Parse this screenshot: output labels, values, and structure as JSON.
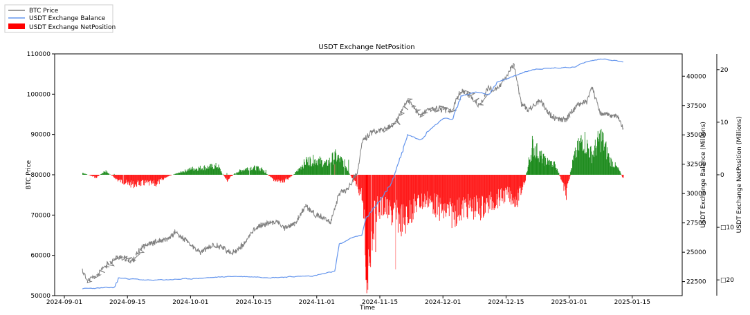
{
  "chart_data": {
    "type": "line",
    "title": "USDT Exchange NetPosition",
    "xlabel": "Time",
    "ylabel_left": "BTC Price",
    "ylabel_right": "USDT Exchange Balance (Millions)",
    "ylabel_right2": "USDT Exchange NetPosition (Millions)",
    "x_ticks": [
      "2024-09-01",
      "2024-09-15",
      "2024-10-01",
      "2024-10-15",
      "2024-11-01",
      "2024-11-15",
      "2024-12-01",
      "2024-12-15",
      "2025-01-01",
      "2025-01-15"
    ],
    "y_left_ticks": [
      "50000",
      "60000",
      "70000",
      "80000",
      "90000",
      "100000",
      "110000"
    ],
    "y_left_range": [
      50000,
      110000
    ],
    "y_right_ticks": [
      "22500",
      "25000",
      "27500",
      "30000",
      "32500",
      "35000",
      "37500",
      "40000"
    ],
    "y_right_range": [
      21300,
      41900
    ],
    "y_right2_ticks": [
      "□20",
      "□10",
      "0",
      "10",
      "20"
    ],
    "y_right2_range": [
      -23,
      23
    ],
    "legend": [
      {
        "name": "BTC Price",
        "color": "#7f7f7f",
        "kind": "line"
      },
      {
        "name": "USDT Exchange Balance",
        "color": "#6495ed",
        "kind": "line"
      },
      {
        "name": "USDT Exchange NetPosition",
        "color": "#ff0000",
        "kind": "bar"
      }
    ],
    "legend_position": "top-left",
    "x_start": "2024-09-05",
    "x_end": "2025-01-13",
    "btc_price": [
      [
        "2024-09-05",
        56300
      ],
      [
        "2024-09-06",
        53800
      ],
      [
        "2024-09-08",
        54800
      ],
      [
        "2024-09-10",
        57200
      ],
      [
        "2024-09-13",
        59800
      ],
      [
        "2024-09-16",
        58500
      ],
      [
        "2024-09-19",
        62500
      ],
      [
        "2024-09-22",
        63300
      ],
      [
        "2024-09-25",
        63800
      ],
      [
        "2024-09-27",
        65800
      ],
      [
        "2024-09-30",
        63500
      ],
      [
        "2024-10-03",
        60700
      ],
      [
        "2024-10-06",
        62500
      ],
      [
        "2024-10-08",
        62200
      ],
      [
        "2024-10-10",
        60300
      ],
      [
        "2024-10-13",
        62800
      ],
      [
        "2024-10-15",
        66500
      ],
      [
        "2024-10-17",
        67500
      ],
      [
        "2024-10-21",
        68500
      ],
      [
        "2024-10-23",
        66800
      ],
      [
        "2024-10-26",
        67800
      ],
      [
        "2024-10-29",
        72300
      ],
      [
        "2024-10-31",
        70500
      ],
      [
        "2024-11-02",
        69500
      ],
      [
        "2024-11-04",
        68000
      ],
      [
        "2024-11-06",
        75500
      ],
      [
        "2024-11-08",
        76600
      ],
      [
        "2024-11-10",
        80500
      ],
      [
        "2024-11-11",
        88000
      ],
      [
        "2024-11-13",
        90500
      ],
      [
        "2024-11-15",
        91000
      ],
      [
        "2024-11-17",
        91500
      ],
      [
        "2024-11-19",
        93000
      ],
      [
        "2024-11-22",
        98800
      ],
      [
        "2024-11-25",
        94500
      ],
      [
        "2024-11-27",
        96000
      ],
      [
        "2024-11-30",
        96500
      ],
      [
        "2024-12-03",
        95800
      ],
      [
        "2024-12-05",
        101000
      ],
      [
        "2024-12-07",
        99800
      ],
      [
        "2024-12-09",
        97000
      ],
      [
        "2024-12-11",
        101500
      ],
      [
        "2024-12-13",
        101000
      ],
      [
        "2024-12-16",
        106000
      ],
      [
        "2024-12-17",
        107500
      ],
      [
        "2024-12-19",
        97500
      ],
      [
        "2024-12-21",
        96000
      ],
      [
        "2024-12-24",
        98500
      ],
      [
        "2024-12-27",
        94500
      ],
      [
        "2024-12-29",
        93800
      ],
      [
        "2024-12-31",
        93500
      ],
      [
        "2025-01-03",
        97500
      ],
      [
        "2025-01-05",
        98300
      ],
      [
        "2025-01-06",
        102000
      ],
      [
        "2025-01-08",
        95000
      ],
      [
        "2025-01-10",
        94800
      ],
      [
        "2025-01-12",
        94500
      ],
      [
        "2025-01-13",
        91000
      ]
    ],
    "usdt_balance": [
      [
        "2024-09-05",
        21900
      ],
      [
        "2024-09-12",
        22000
      ],
      [
        "2024-09-13",
        22800
      ],
      [
        "2024-09-20",
        22600
      ],
      [
        "2024-10-01",
        22750
      ],
      [
        "2024-10-10",
        22950
      ],
      [
        "2024-10-20",
        22850
      ],
      [
        "2024-10-31",
        23000
      ],
      [
        "2024-11-05",
        23400
      ],
      [
        "2024-11-06",
        25700
      ],
      [
        "2024-11-08",
        26200
      ],
      [
        "2024-11-11",
        26500
      ],
      [
        "2024-11-12",
        28000
      ],
      [
        "2024-11-13",
        28500
      ],
      [
        "2024-11-15",
        29500
      ],
      [
        "2024-11-18",
        31000
      ],
      [
        "2024-11-20",
        33000
      ],
      [
        "2024-11-22",
        35000
      ],
      [
        "2024-11-25",
        34500
      ],
      [
        "2024-11-28",
        35700
      ],
      [
        "2024-12-01",
        36500
      ],
      [
        "2024-12-03",
        36300
      ],
      [
        "2024-12-05",
        38300
      ],
      [
        "2024-12-08",
        38700
      ],
      [
        "2024-12-11",
        38400
      ],
      [
        "2024-12-13",
        39500
      ],
      [
        "2024-12-15",
        39800
      ],
      [
        "2024-12-18",
        40200
      ],
      [
        "2024-12-22",
        40600
      ],
      [
        "2024-12-28",
        40700
      ],
      [
        "2025-01-02",
        40800
      ],
      [
        "2025-01-04",
        41200
      ],
      [
        "2025-01-08",
        41500
      ],
      [
        "2025-01-13",
        41200
      ]
    ],
    "net_position": [
      [
        "2024-09-05",
        0.4
      ],
      [
        "2024-09-08",
        -0.6
      ],
      [
        "2024-09-10",
        0.8
      ],
      [
        "2024-09-13",
        -1.2
      ],
      [
        "2024-09-16",
        -2.0
      ],
      [
        "2024-09-19",
        -1.7
      ],
      [
        "2024-09-22",
        -1.9
      ],
      [
        "2024-09-25",
        -0.3
      ],
      [
        "2024-09-28",
        0.4
      ],
      [
        "2024-10-01",
        1.2
      ],
      [
        "2024-10-04",
        1.5
      ],
      [
        "2024-10-07",
        1.8
      ],
      [
        "2024-10-09",
        -1.2
      ],
      [
        "2024-10-11",
        0.5
      ],
      [
        "2024-10-14",
        1.5
      ],
      [
        "2024-10-17",
        1.2
      ],
      [
        "2024-10-20",
        -1.0
      ],
      [
        "2024-10-23",
        -1.4
      ],
      [
        "2024-10-26",
        0.3
      ],
      [
        "2024-10-29",
        2.8
      ],
      [
        "2024-11-01",
        3.0
      ],
      [
        "2024-11-03",
        2.2
      ],
      [
        "2024-11-05",
        3.8
      ],
      [
        "2024-11-07",
        2.5
      ],
      [
        "2024-11-09",
        -1.2
      ],
      [
        "2024-11-11",
        -4.0
      ],
      [
        "2024-11-12",
        -20.0
      ],
      [
        "2024-11-14",
        -7.0
      ],
      [
        "2024-11-16",
        -6.5
      ],
      [
        "2024-11-18",
        -8.0
      ],
      [
        "2024-11-21",
        -9.5
      ],
      [
        "2024-11-24",
        -6.0
      ],
      [
        "2024-11-27",
        -5.0
      ],
      [
        "2024-11-30",
        -7.0
      ],
      [
        "2024-12-03",
        -8.0
      ],
      [
        "2024-12-06",
        -6.5
      ],
      [
        "2024-12-09",
        -7.0
      ],
      [
        "2024-12-12",
        -5.5
      ],
      [
        "2024-12-15",
        -4.0
      ],
      [
        "2024-12-18",
        -5.0
      ],
      [
        "2024-12-20",
        -0.8
      ],
      [
        "2024-12-22",
        6.0
      ],
      [
        "2024-12-25",
        3.0
      ],
      [
        "2024-12-28",
        2.0
      ],
      [
        "2024-12-30",
        -1.5
      ],
      [
        "2024-12-31",
        -4.2
      ],
      [
        "2025-01-02",
        3.5
      ],
      [
        "2025-01-04",
        7.5
      ],
      [
        "2025-01-06",
        4.0
      ],
      [
        "2025-01-08",
        7.8
      ],
      [
        "2025-01-10",
        3.0
      ],
      [
        "2025-01-12",
        1.0
      ],
      [
        "2025-01-13",
        -1.0
      ]
    ]
  }
}
